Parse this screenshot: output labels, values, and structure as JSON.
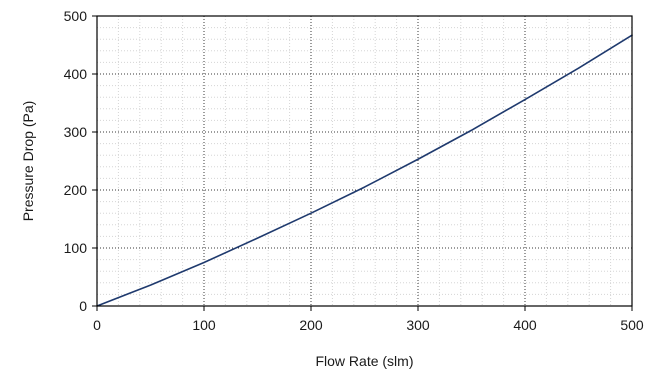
{
  "chart_data": {
    "type": "line",
    "xlabel": "Flow Rate (slm)",
    "ylabel": "Pressure Drop (Pa)",
    "xlim": [
      0,
      500
    ],
    "ylim": [
      0,
      500
    ],
    "x_ticks": [
      "0",
      "100",
      "200",
      "300",
      "400",
      "500"
    ],
    "y_ticks": [
      "0",
      "100",
      "200",
      "300",
      "400",
      "500"
    ],
    "grid": {
      "major": true,
      "minor": true
    },
    "line_color": "#1f3a6e",
    "series": [
      {
        "x": [
          0,
          50,
          100,
          150,
          200,
          250,
          300,
          350,
          400,
          450,
          500
        ],
        "values": [
          0,
          36,
          75,
          117,
          160,
          205,
          253,
          303,
          356,
          410,
          467
        ]
      }
    ]
  }
}
